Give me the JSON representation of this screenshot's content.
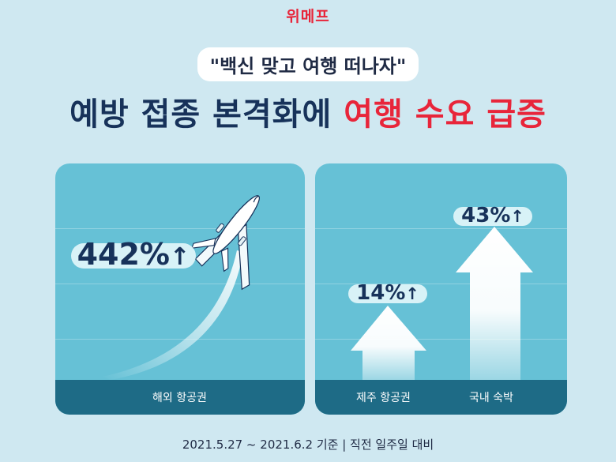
{
  "brand": "위메프",
  "quote": "\"백신 맞고 여행 떠나자\"",
  "headline": {
    "part1": "예방 접종 본격화에 ",
    "part2": "여행 수요 급증"
  },
  "panels": {
    "overseas": {
      "value": "442%",
      "arrow": "↑",
      "label": "해외 항공권",
      "icon": "airplane-icon"
    },
    "jeju": {
      "value": "14%",
      "arrow": "↑",
      "label": "제주 항공권",
      "icon": "up-arrow-icon"
    },
    "domestic": {
      "value": "43%",
      "arrow": "↑",
      "label": "국내 숙박",
      "icon": "up-arrow-icon"
    }
  },
  "date_note": "2021.5.27 ~ 2021.6.2 기준 | 직전 일주일 대비",
  "colors": {
    "accent_red": "#e8253a",
    "navy": "#17325a",
    "panel": "#66c1d6",
    "band": "#1e6b86",
    "background": "#cfe8f1"
  }
}
